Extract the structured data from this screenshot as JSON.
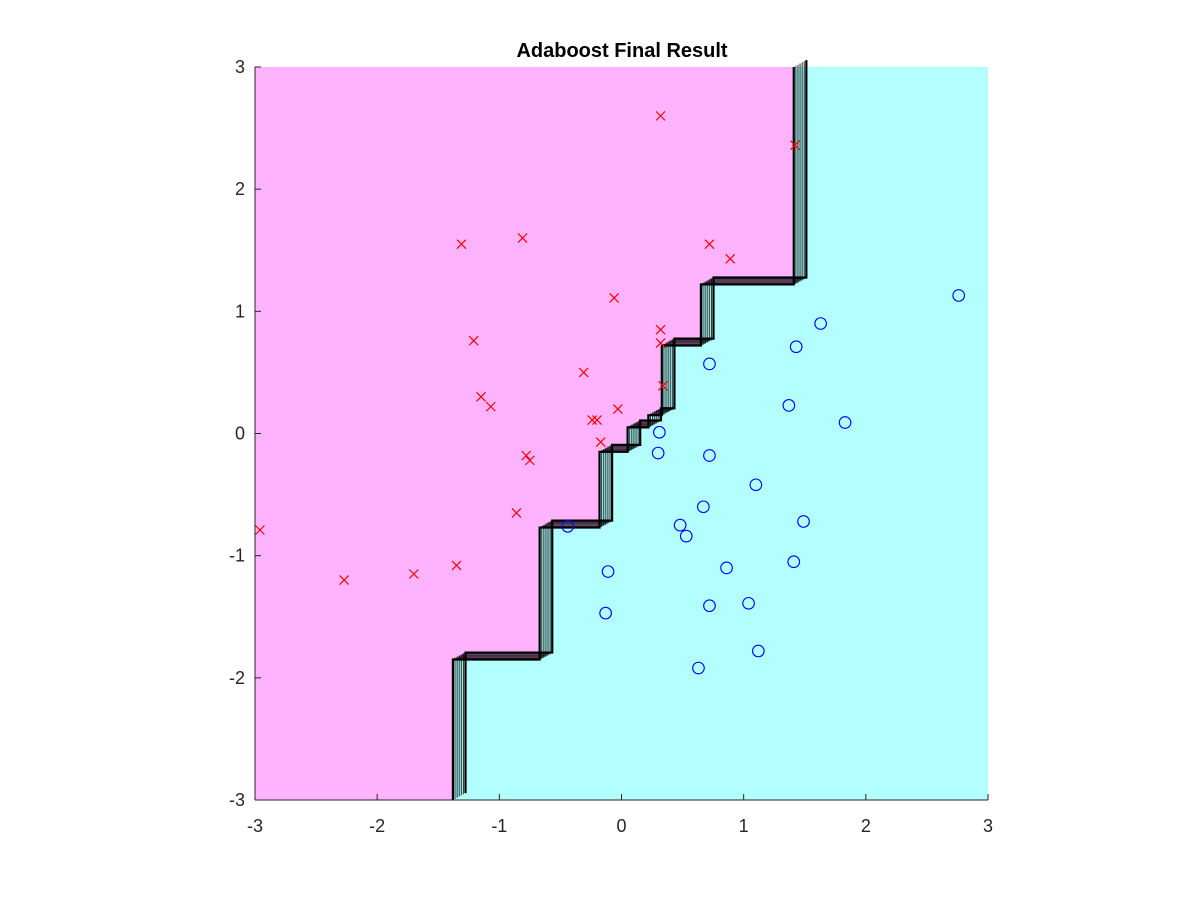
{
  "chart_data": {
    "type": "scatter",
    "title": "Adaboost Final Result",
    "xlabel": "",
    "ylabel": "",
    "xlim": [
      -3,
      3
    ],
    "ylim": [
      -3,
      3
    ],
    "xticks": [
      -3,
      -2,
      -1,
      0,
      1,
      2,
      3
    ],
    "yticks": [
      -3,
      -2,
      -1,
      0,
      1,
      2,
      3
    ],
    "grid": false,
    "regions": [
      {
        "class": "negative",
        "color": "#ffb3ff"
      },
      {
        "class": "positive",
        "color": "#b3ffff"
      }
    ],
    "decision_boundary": {
      "color": "#000000",
      "points": [
        [
          -1.38,
          -3.0
        ],
        [
          -1.38,
          -1.85
        ],
        [
          -0.67,
          -1.85
        ],
        [
          -0.67,
          -0.77
        ],
        [
          -0.18,
          -0.77
        ],
        [
          -0.18,
          -0.15
        ],
        [
          0.05,
          -0.15
        ],
        [
          0.05,
          0.05
        ],
        [
          0.22,
          0.05
        ],
        [
          0.22,
          0.15
        ],
        [
          0.33,
          0.15
        ],
        [
          0.33,
          0.72
        ],
        [
          0.65,
          0.72
        ],
        [
          0.65,
          1.22
        ],
        [
          1.41,
          1.22
        ],
        [
          1.41,
          3.0
        ]
      ]
    },
    "series": [
      {
        "marker": "x",
        "color": "#ff0000",
        "points": [
          [
            -2.96,
            -0.79
          ],
          [
            -2.27,
            -1.2
          ],
          [
            -1.7,
            -1.15
          ],
          [
            -1.35,
            -1.08
          ],
          [
            -1.31,
            1.55
          ],
          [
            -1.21,
            0.76
          ],
          [
            -1.15,
            0.3
          ],
          [
            -1.07,
            0.22
          ],
          [
            -0.86,
            -0.65
          ],
          [
            -0.81,
            1.6
          ],
          [
            -0.78,
            -0.18
          ],
          [
            -0.75,
            -0.22
          ],
          [
            -0.31,
            0.5
          ],
          [
            -0.24,
            0.11
          ],
          [
            -0.2,
            0.11
          ],
          [
            -0.17,
            -0.07
          ],
          [
            -0.06,
            1.11
          ],
          [
            -0.03,
            0.2
          ],
          [
            0.32,
            2.6
          ],
          [
            0.32,
            0.85
          ],
          [
            0.32,
            0.74
          ],
          [
            0.34,
            0.39
          ],
          [
            0.72,
            1.55
          ],
          [
            0.89,
            1.43
          ],
          [
            1.42,
            2.36
          ]
        ]
      },
      {
        "marker": "o",
        "color": "#0000ff",
        "points": [
          [
            -0.44,
            -0.76
          ],
          [
            -0.11,
            -1.13
          ],
          [
            -0.13,
            -1.47
          ],
          [
            0.3,
            -0.16
          ],
          [
            0.31,
            0.01
          ],
          [
            0.48,
            -0.75
          ],
          [
            0.53,
            -0.84
          ],
          [
            0.63,
            -1.92
          ],
          [
            0.67,
            -0.6
          ],
          [
            0.72,
            0.57
          ],
          [
            0.72,
            -0.18
          ],
          [
            0.72,
            -1.41
          ],
          [
            0.86,
            -1.1
          ],
          [
            1.04,
            -1.39
          ],
          [
            1.1,
            -0.42
          ],
          [
            1.12,
            -1.78
          ],
          [
            1.37,
            0.23
          ],
          [
            1.41,
            -1.05
          ],
          [
            1.43,
            0.71
          ],
          [
            1.49,
            -0.72
          ],
          [
            1.63,
            0.9
          ],
          [
            1.83,
            0.09
          ],
          [
            2.76,
            1.13
          ]
        ]
      }
    ]
  }
}
